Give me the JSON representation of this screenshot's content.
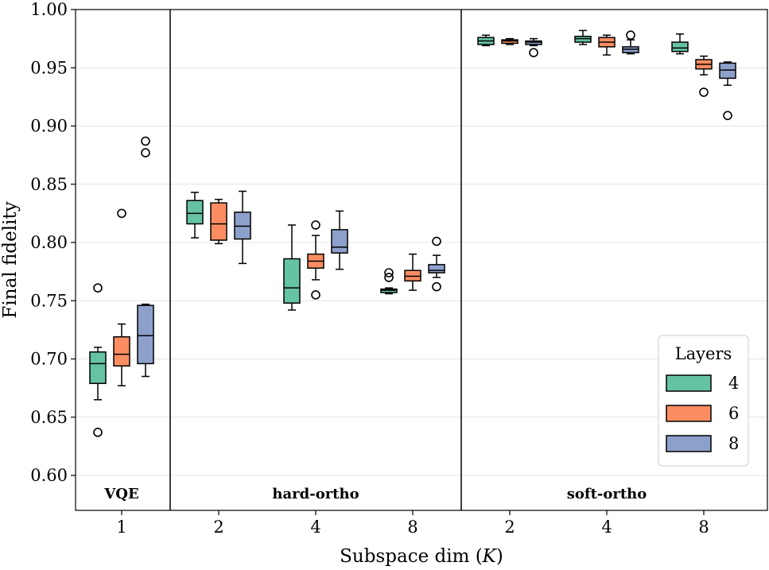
{
  "chart_data": {
    "type": "boxplot",
    "xlabel": "Subspace dim (K)",
    "ylabel": "Final fidelity",
    "ylim": [
      0.57,
      1.0
    ],
    "yticks": [
      "0.60",
      "0.65",
      "0.70",
      "0.75",
      "0.80",
      "0.85",
      "0.90",
      "0.95",
      "1.00"
    ],
    "ytick_values": [
      0.6,
      0.65,
      0.7,
      0.75,
      0.8,
      0.85,
      0.9,
      0.95,
      1.0
    ],
    "grid": "horizontal",
    "legend": {
      "title": "Layers",
      "placement": "lower-right",
      "entries": [
        {
          "label": "4",
          "color": "#66c2a5"
        },
        {
          "label": "6",
          "color": "#fc8d62"
        },
        {
          "label": "8",
          "color": "#8da0cb"
        }
      ]
    },
    "groups": [
      {
        "name": "VQE",
        "categories": [
          {
            "k": "1",
            "boxes": [
              {
                "layers": "4",
                "whislo": 0.665,
                "q1": 0.679,
                "med": 0.696,
                "q3": 0.706,
                "whishi": 0.71,
                "fliers": [
                  0.637,
                  0.761
                ]
              },
              {
                "layers": "6",
                "whislo": 0.677,
                "q1": 0.694,
                "med": 0.704,
                "q3": 0.719,
                "whishi": 0.73,
                "fliers": [
                  0.825
                ]
              },
              {
                "layers": "8",
                "whislo": 0.685,
                "q1": 0.696,
                "med": 0.72,
                "q3": 0.746,
                "whishi": 0.747,
                "fliers": [
                  0.877,
                  0.887
                ]
              }
            ]
          }
        ]
      },
      {
        "name": "hard-ortho",
        "categories": [
          {
            "k": "2",
            "boxes": [
              {
                "layers": "4",
                "whislo": 0.804,
                "q1": 0.816,
                "med": 0.825,
                "q3": 0.836,
                "whishi": 0.843,
                "fliers": []
              },
              {
                "layers": "6",
                "whislo": 0.799,
                "q1": 0.802,
                "med": 0.816,
                "q3": 0.834,
                "whishi": 0.837,
                "fliers": []
              },
              {
                "layers": "8",
                "whislo": 0.782,
                "q1": 0.803,
                "med": 0.814,
                "q3": 0.826,
                "whishi": 0.844,
                "fliers": []
              }
            ]
          },
          {
            "k": "4",
            "boxes": [
              {
                "layers": "4",
                "whislo": 0.742,
                "q1": 0.748,
                "med": 0.761,
                "q3": 0.786,
                "whishi": 0.815,
                "fliers": []
              },
              {
                "layers": "6",
                "whislo": 0.768,
                "q1": 0.778,
                "med": 0.784,
                "q3": 0.79,
                "whishi": 0.806,
                "fliers": [
                  0.755,
                  0.815
                ]
              },
              {
                "layers": "8",
                "whislo": 0.777,
                "q1": 0.791,
                "med": 0.796,
                "q3": 0.811,
                "whishi": 0.827,
                "fliers": []
              }
            ]
          },
          {
            "k": "8",
            "boxes": [
              {
                "layers": "4",
                "whislo": 0.756,
                "q1": 0.757,
                "med": 0.759,
                "q3": 0.76,
                "whishi": 0.761,
                "fliers": [
                  0.77,
                  0.774
                ]
              },
              {
                "layers": "6",
                "whislo": 0.759,
                "q1": 0.767,
                "med": 0.771,
                "q3": 0.776,
                "whishi": 0.79,
                "fliers": []
              },
              {
                "layers": "8",
                "whislo": 0.77,
                "q1": 0.774,
                "med": 0.776,
                "q3": 0.781,
                "whishi": 0.789,
                "fliers": [
                  0.762,
                  0.801
                ]
              }
            ]
          }
        ]
      },
      {
        "name": "soft-ortho",
        "categories": [
          {
            "k": "2",
            "boxes": [
              {
                "layers": "4",
                "whislo": 0.969,
                "q1": 0.97,
                "med": 0.973,
                "q3": 0.976,
                "whishi": 0.978,
                "fliers": []
              },
              {
                "layers": "6",
                "whislo": 0.97,
                "q1": 0.971,
                "med": 0.973,
                "q3": 0.974,
                "whishi": 0.975,
                "fliers": []
              },
              {
                "layers": "8",
                "whislo": 0.969,
                "q1": 0.97,
                "med": 0.972,
                "q3": 0.973,
                "whishi": 0.975,
                "fliers": [
                  0.963
                ]
              }
            ]
          },
          {
            "k": "4",
            "boxes": [
              {
                "layers": "4",
                "whislo": 0.97,
                "q1": 0.972,
                "med": 0.975,
                "q3": 0.977,
                "whishi": 0.982,
                "fliers": []
              },
              {
                "layers": "6",
                "whislo": 0.961,
                "q1": 0.968,
                "med": 0.972,
                "q3": 0.976,
                "whishi": 0.978,
                "fliers": []
              },
              {
                "layers": "8",
                "whislo": 0.962,
                "q1": 0.963,
                "med": 0.966,
                "q3": 0.968,
                "whishi": 0.974,
                "fliers": [
                  0.978
                ]
              }
            ]
          },
          {
            "k": "8",
            "boxes": [
              {
                "layers": "4",
                "whislo": 0.962,
                "q1": 0.964,
                "med": 0.967,
                "q3": 0.972,
                "whishi": 0.979,
                "fliers": []
              },
              {
                "layers": "6",
                "whislo": 0.944,
                "q1": 0.949,
                "med": 0.953,
                "q3": 0.957,
                "whishi": 0.96,
                "fliers": [
                  0.929
                ]
              },
              {
                "layers": "8",
                "whislo": 0.935,
                "q1": 0.941,
                "med": 0.948,
                "q3": 0.954,
                "whishi": 0.955,
                "fliers": [
                  0.909
                ]
              }
            ]
          }
        ]
      }
    ]
  }
}
